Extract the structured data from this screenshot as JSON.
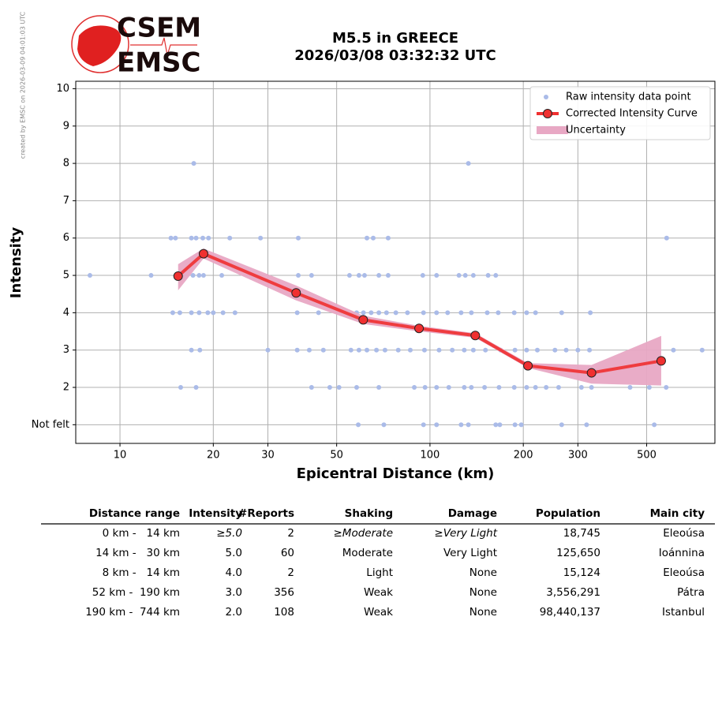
{
  "side_note": "created by EMSC on 2026-03-09 04:01:03 UTC",
  "logo": {
    "top": "CSEM",
    "bottom": "EMSC"
  },
  "chart_data": {
    "type": "scatter",
    "title": "M5.5 in GREECE",
    "subtitle": "2026/03/08 03:32:32 UTC",
    "x_label": "Epicentral Distance (km)",
    "y_label": "Intensity",
    "xscale": "log",
    "xlim": [
      7.2,
      830
    ],
    "xticks": [
      10,
      20,
      30,
      50,
      100,
      200,
      300,
      500
    ],
    "ylim": [
      0.5,
      10.2
    ],
    "yticks": [
      {
        "value": 1,
        "label": "Not felt"
      },
      2,
      3,
      4,
      5,
      6,
      7,
      8,
      9,
      10
    ],
    "grid": true,
    "legend": "upper right",
    "series": [
      {
        "name": "Raw intensity data point",
        "kind": "points",
        "color": "#aabbe8",
        "x": [
          17.3,
          133,
          14.6,
          15.1,
          17.0,
          17.6,
          18.5,
          19.3,
          22.6,
          28.4,
          37.6,
          62.6,
          65.6,
          73.3,
          580,
          8.0,
          12.6,
          15.4,
          17.2,
          18.0,
          18.6,
          21.3,
          37.6,
          41.5,
          55,
          59,
          61.5,
          68.4,
          73.3,
          94.8,
          105,
          124,
          130,
          138,
          154,
          163,
          14.8,
          15.6,
          17.0,
          18.0,
          19.2,
          20.0,
          21.5,
          23.5,
          37.3,
          43.7,
          58,
          61,
          64.6,
          68.4,
          72.4,
          77.6,
          84.6,
          95.3,
          105,
          114,
          126,
          136,
          153,
          166,
          187,
          205,
          219,
          266,
          329,
          17,
          18.1,
          30,
          37.3,
          40.8,
          45.3,
          55.6,
          59,
          62.6,
          67.2,
          71.6,
          79,
          86.4,
          96,
          107,
          118,
          129,
          138,
          151,
          169,
          188,
          205,
          222,
          253,
          275,
          300,
          327,
          610,
          755,
          15.7,
          17.6,
          41.5,
          47.5,
          50.9,
          58,
          68.4,
          89,
          96.4,
          105,
          115,
          129,
          136,
          150,
          167,
          187,
          205,
          219,
          237,
          260,
          308,
          332,
          442,
          510,
          578,
          58.7,
          71,
          95.3,
          105,
          126,
          133,
          163,
          168,
          188,
          197,
          266,
          320,
          529
        ],
        "values": [
          8,
          8,
          6,
          6,
          6,
          6,
          6,
          6,
          6,
          6,
          6,
          6,
          6,
          6,
          6,
          5,
          5,
          5,
          5,
          5,
          5,
          5,
          5,
          5,
          5,
          5,
          5,
          5,
          5,
          5,
          5,
          5,
          5,
          5,
          5,
          5,
          4,
          4,
          4,
          4,
          4,
          4,
          4,
          4,
          4,
          4,
          4,
          4,
          4,
          4,
          4,
          4,
          4,
          4,
          4,
          4,
          4,
          4,
          4,
          4,
          4,
          4,
          4,
          4,
          4,
          3,
          3,
          3,
          3,
          3,
          3,
          3,
          3,
          3,
          3,
          3,
          3,
          3,
          3,
          3,
          3,
          3,
          3,
          3,
          3,
          3,
          3,
          3,
          3,
          3,
          3,
          3,
          3,
          3,
          2,
          2,
          2,
          2,
          2,
          2,
          2,
          2,
          2,
          2,
          2,
          2,
          2,
          2,
          2,
          2,
          2,
          2,
          2,
          2,
          2,
          2,
          2,
          2,
          2,
          1,
          1,
          1,
          1,
          1,
          1,
          1,
          1,
          1,
          1,
          1,
          1,
          1
        ]
      },
      {
        "name": "Corrected Intensity Curve",
        "kind": "line",
        "color": "#f03030",
        "x": [
          15.4,
          18.6,
          37,
          60.9,
          92.2,
          140,
          207,
          332,
          557
        ],
        "values": [
          4.98,
          5.58,
          4.53,
          3.81,
          3.58,
          3.39,
          2.58,
          2.39,
          2.71
        ]
      },
      {
        "name": "Uncertainty",
        "kind": "band",
        "color": "#e8a8c4",
        "x": [
          15.4,
          18.6,
          37,
          60.9,
          92.2,
          140,
          207,
          332,
          557
        ],
        "lower": [
          4.6,
          5.45,
          4.33,
          3.7,
          3.5,
          3.33,
          2.52,
          2.1,
          2.05
        ],
        "upper": [
          5.3,
          5.72,
          4.73,
          3.92,
          3.65,
          3.45,
          2.65,
          2.6,
          3.38
        ]
      }
    ]
  },
  "table": {
    "headers": [
      "Distance range",
      "Intensity",
      "#Reports",
      "Shaking",
      "Damage",
      "Population",
      "Main city"
    ],
    "rows": [
      [
        "0 km -   14 km",
        "≥5.0",
        "2",
        "≥Moderate",
        "≥Very Light",
        "18,745",
        "Eleoúsa"
      ],
      [
        "14 km -   30 km",
        "5.0",
        "60",
        "Moderate",
        "Very Light",
        "125,650",
        "Ioánnina"
      ],
      [
        "8 km -   14 km",
        "4.0",
        "2",
        "Light",
        "None",
        "15,124",
        "Eleoúsa"
      ],
      [
        "52 km -  190 km",
        "3.0",
        "356",
        "Weak",
        "None",
        "3,556,291",
        "Pátra"
      ],
      [
        "190 km -  744 km",
        "2.0",
        "108",
        "Weak",
        "None",
        "98,440,137",
        "Istanbul"
      ]
    ]
  }
}
